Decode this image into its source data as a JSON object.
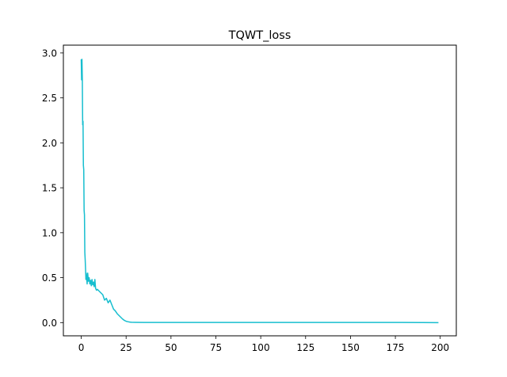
{
  "chart_data": {
    "type": "line",
    "title": "TQWT_loss",
    "xlabel": "",
    "ylabel": "",
    "xlim": [
      -9.95,
      208.95
    ],
    "ylim": [
      -0.147,
      3.087
    ],
    "xticks": [
      0,
      25,
      50,
      75,
      100,
      125,
      150,
      175,
      200
    ],
    "xtick_labels": [
      "0",
      "25",
      "50",
      "75",
      "100",
      "125",
      "150",
      "175",
      "200"
    ],
    "yticks": [
      0.0,
      0.5,
      1.0,
      1.5,
      2.0,
      2.5,
      3.0
    ],
    "ytick_labels": [
      "0.0",
      "0.5",
      "1.0",
      "1.5",
      "2.0",
      "2.5",
      "3.0"
    ],
    "grid": false,
    "legend": "none",
    "series": [
      {
        "color": "#17becf",
        "x": [
          0,
          0.2,
          0.4,
          0.6,
          0.8,
          1.0,
          1.2,
          1.4,
          1.6,
          1.8,
          2.0,
          2.2,
          2.4,
          2.6,
          2.8,
          3.0,
          3.3,
          3.6,
          4.0,
          4.4,
          4.8,
          5.2,
          5.6,
          6.0,
          6.4,
          6.8,
          7.2,
          7.6,
          8.0,
          8.5,
          9.0,
          10,
          11,
          12,
          13,
          14,
          15,
          16,
          17,
          18,
          19,
          20,
          21,
          22,
          23,
          24,
          25,
          26,
          27,
          28,
          30,
          35,
          40,
          50,
          60,
          75,
          100,
          125,
          150,
          175,
          190,
          199
        ],
        "y": [
          2.93,
          2.7,
          2.93,
          2.72,
          2.2,
          2.24,
          1.75,
          1.7,
          1.25,
          1.2,
          0.78,
          0.7,
          0.6,
          0.48,
          0.55,
          0.5,
          0.43,
          0.55,
          0.46,
          0.5,
          0.43,
          0.47,
          0.41,
          0.48,
          0.42,
          0.45,
          0.4,
          0.48,
          0.38,
          0.36,
          0.37,
          0.35,
          0.33,
          0.31,
          0.25,
          0.27,
          0.22,
          0.25,
          0.2,
          0.15,
          0.13,
          0.1,
          0.08,
          0.06,
          0.04,
          0.025,
          0.015,
          0.01,
          0.006,
          0.004,
          0.003,
          0.002,
          0.002,
          0.002,
          0.002,
          0.002,
          0.002,
          0.002,
          0.002,
          0.002,
          0.001,
          0.0
        ]
      }
    ]
  }
}
